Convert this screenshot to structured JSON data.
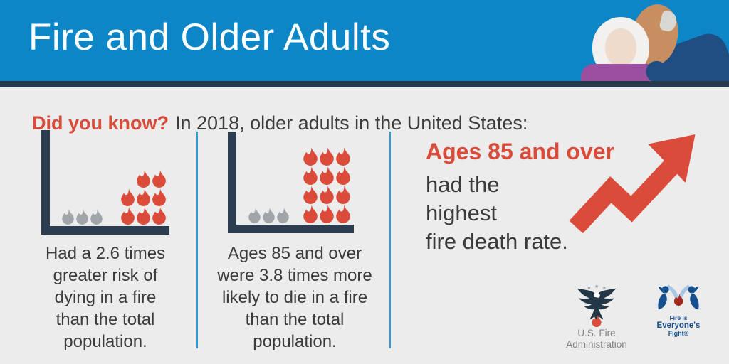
{
  "header": {
    "title": "Fire and Older Adults"
  },
  "intro": {
    "highlight": "Did you know?",
    "text": "In 2018, older adults in the United States:"
  },
  "chart_data": [
    {
      "type": "pictogram",
      "caption": "Had a 2.6 times greater risk of dying in a fire than the total population.",
      "ratio": "2.6x",
      "icon": "flame",
      "series": [
        {
          "name": "Total population",
          "color": "gray",
          "count": 3
        },
        {
          "name": "Older adults",
          "color": "red",
          "count": 8
        }
      ],
      "gray_rows": [
        3
      ],
      "red_rows": [
        2,
        3,
        3
      ]
    },
    {
      "type": "pictogram",
      "caption": "Ages 85 and over were 3.8 times more likely to die in a fire than the total population.",
      "ratio": "3.8x",
      "icon": "flame",
      "series": [
        {
          "name": "Total population",
          "color": "gray",
          "count": 3
        },
        {
          "name": "Ages 85 and over",
          "color": "red",
          "count": 12
        }
      ],
      "gray_rows": [
        3
      ],
      "red_rows": [
        3,
        3,
        3,
        3
      ]
    }
  ],
  "highlight_fact": {
    "lead": "Ages 85 and over",
    "lines": [
      "had the",
      "highest",
      "fire death rate."
    ]
  },
  "logos": {
    "usfa": {
      "line1": "U.S. Fire",
      "line2": "Administration"
    },
    "fief": {
      "line1": "Fire is",
      "line2": "Everyone's",
      "line3": "Fight®"
    }
  },
  "colors": {
    "banner_blue": "#0d86c8",
    "stripe_navy": "#273a4d",
    "body_bg": "#ebeceb",
    "accent_red": "#da4b3a",
    "gray_flame": "#9fa5a9",
    "axis_navy": "#2c3d50",
    "divider_blue": "#2f9cd9",
    "text_dark": "#3b3b3d",
    "logo_navy": "#243746",
    "logo_blue": "#17508f",
    "logo_lightblue": "#a9c6e2",
    "logo_text_gray": "#7d8287"
  }
}
